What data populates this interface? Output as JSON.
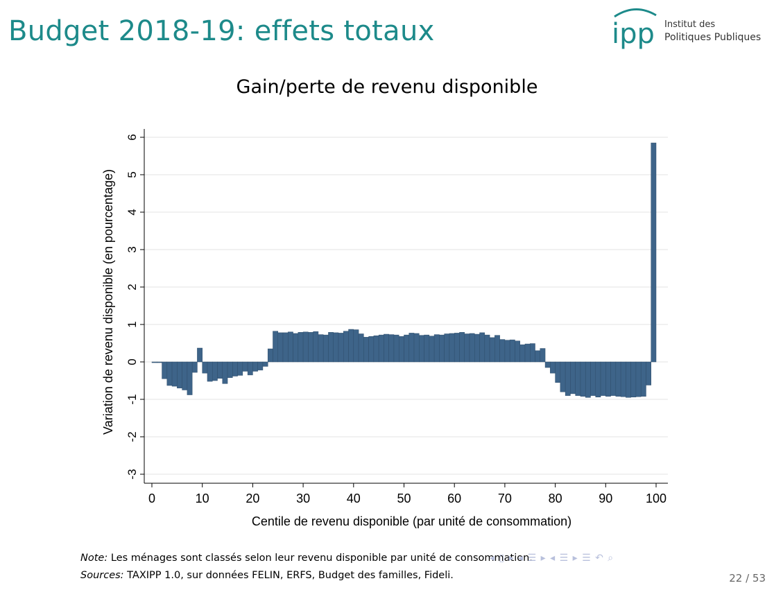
{
  "slide": {
    "title": "Budget 2018-19: effets totaux",
    "logo": {
      "mark": "ipp",
      "line1": "Institut des",
      "line2": "Politiques Publiques"
    }
  },
  "chart_data": {
    "type": "bar",
    "title": "Gain/perte de revenu disponible",
    "xlabel": "Centile de revenu disponible (par unité de consommation)",
    "ylabel": "Variation de revenu disponible (en pourcentage)",
    "xlim": [
      0,
      100
    ],
    "ylim": [
      -3,
      6
    ],
    "x_ticks": [
      "0",
      "10",
      "20",
      "30",
      "40",
      "50",
      "60",
      "70",
      "80",
      "90",
      "100"
    ],
    "y_ticks": [
      "-3",
      "-2",
      "-1",
      "0",
      "1",
      "2",
      "3",
      "4",
      "5",
      "6"
    ],
    "grid": true,
    "bar_color": "#3e6489",
    "categories": [
      1,
      2,
      3,
      4,
      5,
      6,
      7,
      8,
      9,
      10,
      11,
      12,
      13,
      14,
      15,
      16,
      17,
      18,
      19,
      20,
      21,
      22,
      23,
      24,
      25,
      26,
      27,
      28,
      29,
      30,
      31,
      32,
      33,
      34,
      35,
      36,
      37,
      38,
      39,
      40,
      41,
      42,
      43,
      44,
      45,
      46,
      47,
      48,
      49,
      50,
      51,
      52,
      53,
      54,
      55,
      56,
      57,
      58,
      59,
      60,
      61,
      62,
      63,
      64,
      65,
      66,
      67,
      68,
      69,
      70,
      71,
      72,
      73,
      74,
      75,
      76,
      77,
      78,
      79,
      80,
      81,
      82,
      83,
      84,
      85,
      86,
      87,
      88,
      89,
      90,
      91,
      92,
      93,
      94,
      95,
      96,
      97,
      98,
      99,
      100
    ],
    "values": [
      -0.02,
      -0.02,
      -0.45,
      -0.63,
      -0.65,
      -0.7,
      -0.75,
      -0.88,
      -0.28,
      0.37,
      -0.3,
      -0.52,
      -0.5,
      -0.44,
      -0.58,
      -0.42,
      -0.38,
      -0.36,
      -0.25,
      -0.35,
      -0.25,
      -0.22,
      -0.12,
      0.35,
      0.82,
      0.78,
      0.78,
      0.8,
      0.76,
      0.79,
      0.8,
      0.79,
      0.81,
      0.73,
      0.72,
      0.79,
      0.78,
      0.77,
      0.82,
      0.87,
      0.86,
      0.75,
      0.66,
      0.68,
      0.7,
      0.72,
      0.74,
      0.73,
      0.72,
      0.68,
      0.72,
      0.77,
      0.76,
      0.71,
      0.72,
      0.69,
      0.73,
      0.72,
      0.75,
      0.76,
      0.77,
      0.79,
      0.75,
      0.76,
      0.74,
      0.78,
      0.72,
      0.65,
      0.71,
      0.6,
      0.58,
      0.59,
      0.56,
      0.46,
      0.48,
      0.49,
      0.3,
      0.36,
      -0.15,
      -0.3,
      -0.55,
      -0.8,
      -0.9,
      -0.85,
      -0.9,
      -0.92,
      -0.95,
      -0.9,
      -0.94,
      -0.9,
      -0.92,
      -0.9,
      -0.92,
      -0.93,
      -0.95,
      -0.94,
      -0.93,
      -0.92,
      -0.62,
      5.85
    ]
  },
  "footer": {
    "note_label": "Note:",
    "note_text": " Les ménages sont classés selon leur revenu disponible par unité de consommation.",
    "sources_label": "Sources:",
    "sources_text": " TAXIPP 1.0, sur données FELIN, ERFS, Budget des familles, Fideli.",
    "page": "22 / 53"
  },
  "nav_icons": [
    "frame-nav-icon",
    "section-nav-icon",
    "subsection-nav-icon",
    "align-icon",
    "undo-icon",
    "search-icon"
  ]
}
